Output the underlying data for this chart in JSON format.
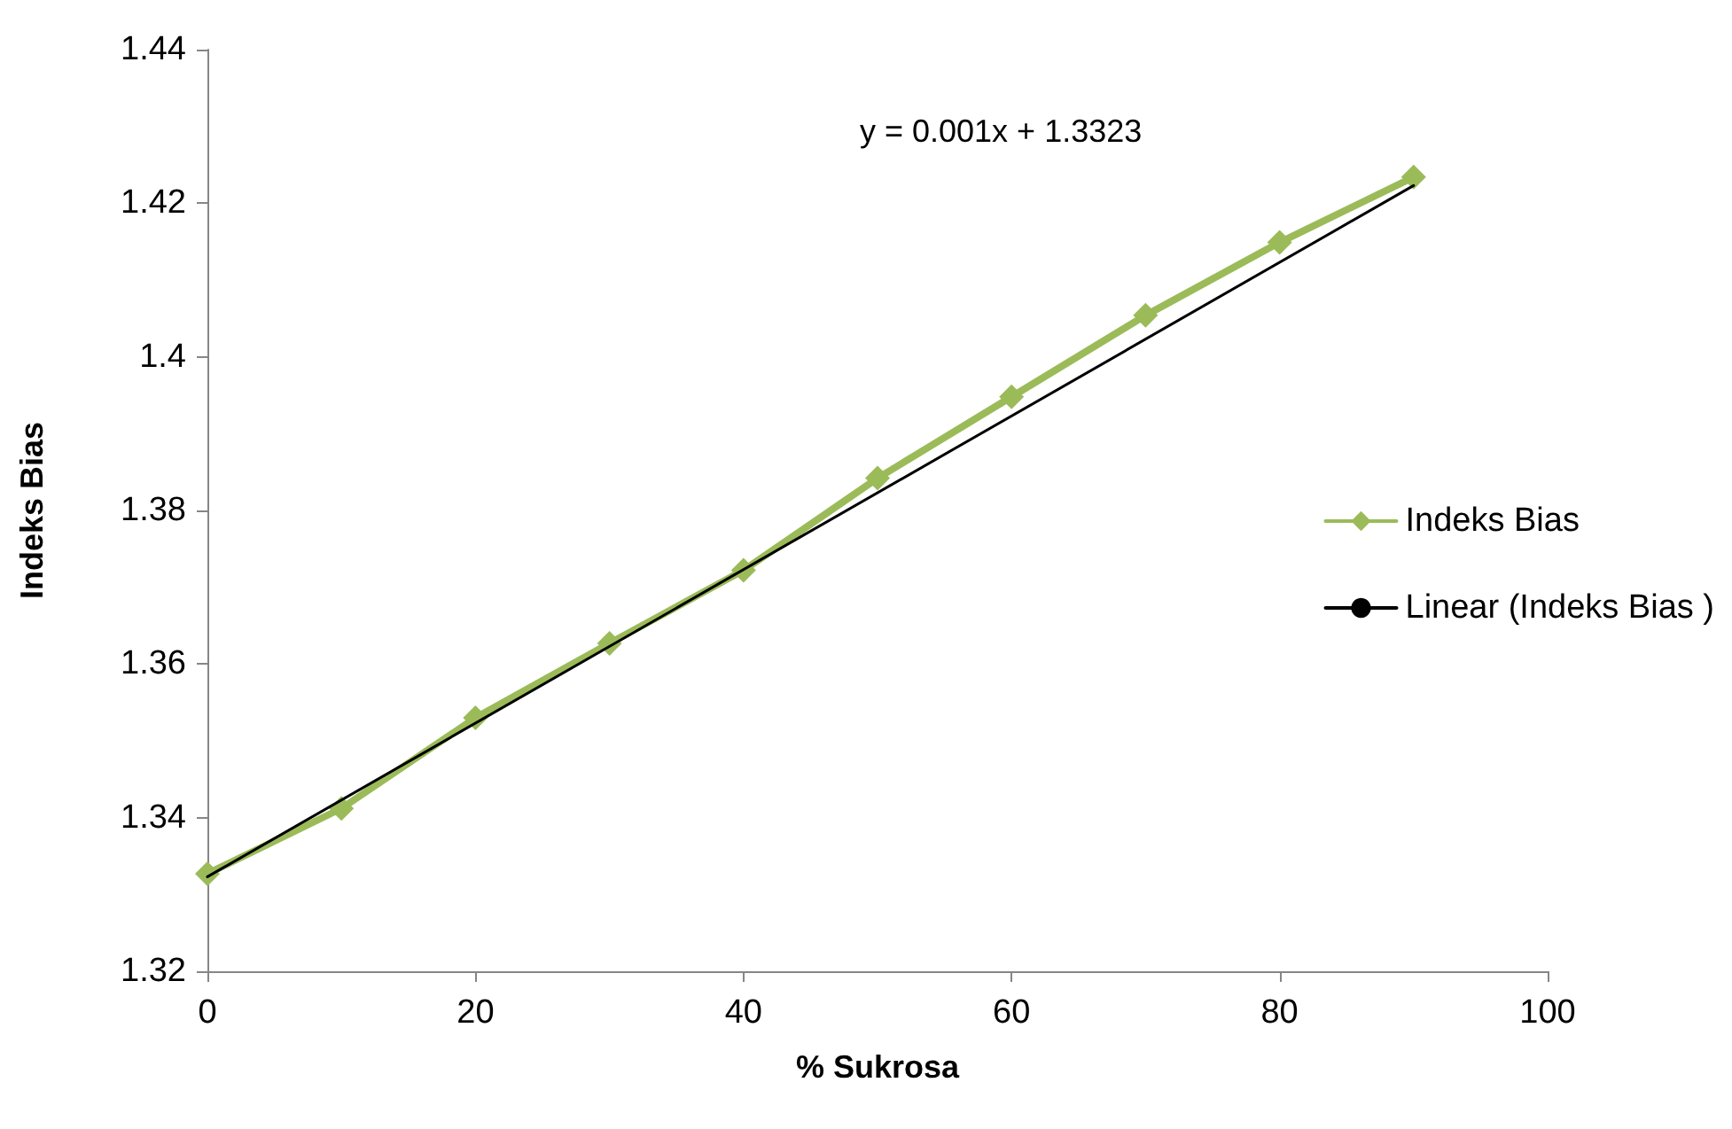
{
  "chart_data": {
    "type": "line",
    "xlabel": "% Sukrosa",
    "ylabel": "Indeks Bias",
    "x": [
      0,
      10,
      20,
      30,
      40,
      50,
      60,
      70,
      80,
      90
    ],
    "series": [
      {
        "name": "Indeks Bias",
        "color": "#9bbb59",
        "values": [
          1.3327,
          1.3412,
          1.353,
          1.3627,
          1.3722,
          1.3842,
          1.3948,
          1.4054,
          1.4149,
          1.4234
        ],
        "marker": "diamond"
      },
      {
        "name": "Linear (Indeks Bias )",
        "type": "line",
        "color": "#000000",
        "x": [
          0,
          90
        ],
        "values": [
          1.3323,
          1.4223
        ],
        "marker": "none"
      }
    ],
    "xlim": [
      0,
      100
    ],
    "xticks": [
      0,
      20,
      40,
      60,
      80,
      100
    ],
    "ylim": [
      1.32,
      1.44
    ],
    "yticks": [
      1.32,
      1.34,
      1.36,
      1.38,
      1.4,
      1.42,
      1.44
    ],
    "grid": false,
    "legend": "right",
    "annotations": [
      "y = 0.001x + 1.3323"
    ]
  }
}
